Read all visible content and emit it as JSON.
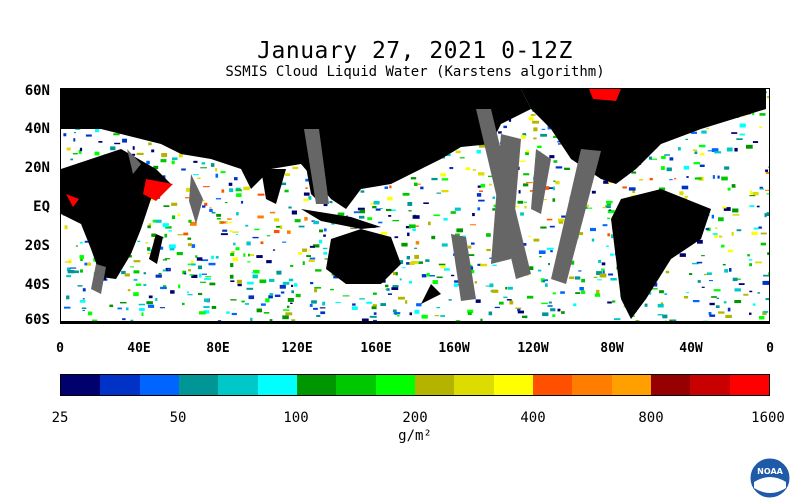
{
  "title": "January 27, 2021 0-12Z",
  "subtitle": "SSMIS Cloud Liquid Water (Karstens algorithm)",
  "map": {
    "lat_labels": [
      "60N",
      "40N",
      "20N",
      "EQ",
      "20S",
      "40S",
      "60S"
    ],
    "lat_values": [
      60,
      40,
      20,
      0,
      -20,
      -40,
      -60
    ],
    "lon_labels": [
      "0",
      "40E",
      "80E",
      "120E",
      "160E",
      "160W",
      "120W",
      "80W",
      "40W",
      "0"
    ],
    "lon_values": [
      0,
      40,
      80,
      120,
      160,
      200,
      240,
      280,
      320,
      360
    ],
    "lat_range": [
      -60,
      60
    ],
    "lon_range": [
      0,
      360
    ],
    "land_color": "#000000",
    "no_data_color": "#666666",
    "icon": "world-map"
  },
  "colorbar": {
    "colors": [
      "#00006e",
      "#0032c8",
      "#0064ff",
      "#009696",
      "#00c8c8",
      "#00ffff",
      "#009600",
      "#00c800",
      "#00ff00",
      "#b4b400",
      "#dcdc00",
      "#ffff00",
      "#ff5000",
      "#ff7d00",
      "#ffa000",
      "#960000",
      "#c80000",
      "#ff0000"
    ],
    "tick_labels": [
      "25",
      "50",
      "100",
      "200",
      "400",
      "800",
      "1600"
    ],
    "unit": "g/m²"
  },
  "logo": {
    "icon": "noaa-logo",
    "text": "NOAA"
  }
}
